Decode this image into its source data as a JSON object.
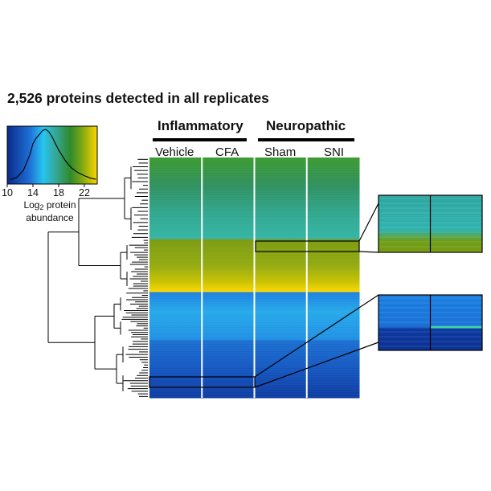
{
  "chart_data": {
    "type": "heatmap",
    "title": "2,526 proteins detected in all replicates",
    "groups": [
      {
        "label": "Inflammatory",
        "conditions": [
          "Vehicle",
          "CFA"
        ]
      },
      {
        "label": "Neuropathic",
        "conditions": [
          "Sham",
          "SNI"
        ]
      }
    ],
    "columns": [
      "Vehicle",
      "CFA",
      "Sham",
      "SNI"
    ],
    "clusters_top_to_bottom": [
      {
        "fraction": 0.34,
        "approx_log2_abundance": 18
      },
      {
        "fraction": 0.22,
        "approx_log2_abundance": 20
      },
      {
        "fraction": 0.2,
        "approx_log2_abundance": 14
      },
      {
        "fraction": 0.24,
        "approx_log2_abundance": 12
      }
    ],
    "color_scale": {
      "min": 10,
      "max": 24,
      "ticks": [
        10,
        14,
        18,
        22
      ],
      "tick_labels": [
        "10",
        "14",
        "18",
        "22"
      ],
      "label_prefix": "Log",
      "label_subscript": "2",
      "label_suffix": " protein abundance",
      "colors": [
        "#0a2a8a",
        "#1f6fd6",
        "#27c4f0",
        "#35a58f",
        "#2e8a2c",
        "#7da713",
        "#ffd400"
      ],
      "histogram": [
        {
          "x": 10.5,
          "y": 0.02
        },
        {
          "x": 11.5,
          "y": 0.07
        },
        {
          "x": 12.5,
          "y": 0.2
        },
        {
          "x": 13.5,
          "y": 0.5
        },
        {
          "x": 14.0,
          "y": 0.72
        },
        {
          "x": 14.5,
          "y": 0.83
        },
        {
          "x": 15.0,
          "y": 0.9
        },
        {
          "x": 15.5,
          "y": 0.98
        },
        {
          "x": 16.0,
          "y": 1.0
        },
        {
          "x": 16.5,
          "y": 0.95
        },
        {
          "x": 17.0,
          "y": 0.85
        },
        {
          "x": 17.5,
          "y": 0.72
        },
        {
          "x": 18.0,
          "y": 0.6
        },
        {
          "x": 18.5,
          "y": 0.5
        },
        {
          "x": 19.0,
          "y": 0.4
        },
        {
          "x": 19.5,
          "y": 0.32
        },
        {
          "x": 20.0,
          "y": 0.25
        },
        {
          "x": 21.0,
          "y": 0.16
        },
        {
          "x": 22.0,
          "y": 0.1
        },
        {
          "x": 23.0,
          "y": 0.05
        },
        {
          "x": 23.8,
          "y": 0.03
        }
      ]
    },
    "zoom_insets": [
      "cluster 1 / cluster 2 boundary",
      "cluster 4 subcluster"
    ]
  }
}
